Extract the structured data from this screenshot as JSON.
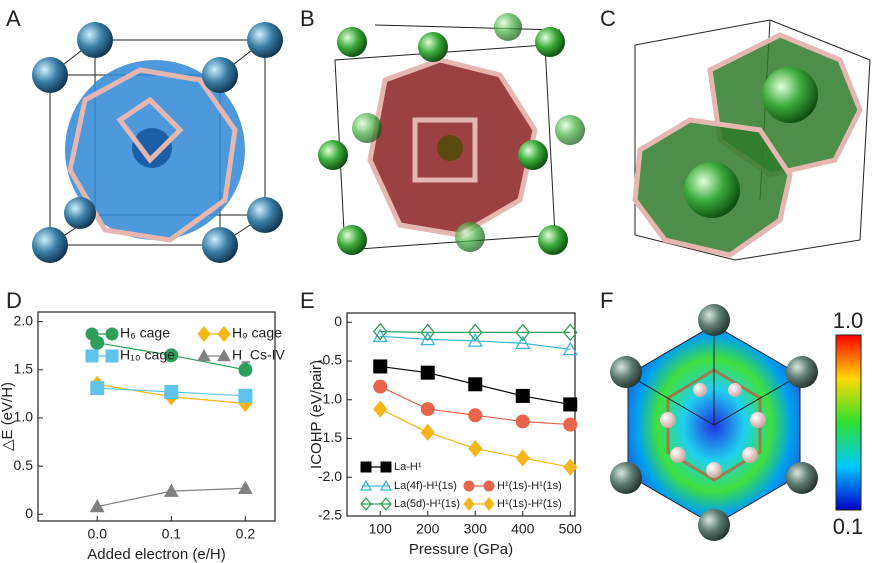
{
  "panel_labels": [
    "A",
    "B",
    "C",
    "D",
    "E",
    "F"
  ],
  "colorbar": {
    "max_label": "1.0",
    "min_label": "0.1"
  },
  "chart_data": [
    {
      "type": "line",
      "x_label": "Added electron (e/H)",
      "y_label": "△E (eV/H)",
      "x": [
        0,
        0.1,
        0.2
      ],
      "xlim": [
        -0.08,
        0.24
      ],
      "ylim": [
        -0.07,
        2.1
      ],
      "xticks": [
        {
          "value": 0,
          "label": "0.0"
        },
        0.1,
        0.2
      ],
      "yticks": [
        0,
        0.5,
        {
          "value": 1,
          "label": "1.0"
        },
        1.5,
        {
          "value": 2,
          "label": "2.0"
        }
      ],
      "legend": "top",
      "series": [
        {
          "name": "H₆ cage",
          "color": "#2e9e5b",
          "marker": "circle",
          "filled": true,
          "values": [
            1.78,
            1.65,
            1.5
          ]
        },
        {
          "name": "H₉ cage",
          "color": "#f6b61a",
          "marker": "diamond",
          "filled": true,
          "values": [
            1.35,
            1.22,
            1.15
          ]
        },
        {
          "name": "H₁₀ cage",
          "color": "#5ec4ec",
          "marker": "square",
          "filled": true,
          "values": [
            1.31,
            1.27,
            1.23
          ]
        },
        {
          "name": "H_Cs-IV",
          "color": "#808080",
          "marker": "triangle",
          "filled": true,
          "values": [
            0.08,
            0.24,
            0.27
          ]
        }
      ]
    },
    {
      "type": "line",
      "x_label": "Pressure (GPa)",
      "y_label": "ICOHP (eV/pair)",
      "x": [
        100,
        200,
        300,
        400,
        500
      ],
      "xlim": [
        30,
        510
      ],
      "ylim": [
        -2.5,
        0.12
      ],
      "xticks": [
        100,
        200,
        300,
        400,
        500
      ],
      "yticks": [
        0,
        -0.5,
        {
          "value": -1,
          "label": "-1.0"
        },
        -1.5,
        {
          "value": -2,
          "label": "-2.0"
        },
        -2.5
      ],
      "legend": "bottom",
      "series": [
        {
          "name": "La-H¹",
          "color": "#000000",
          "marker": "square",
          "filled": true,
          "values": [
            -0.57,
            -0.65,
            -0.8,
            -0.95,
            -1.06
          ]
        },
        {
          "name": "La(4f)-H¹(1s)",
          "color": "#3ab6d8",
          "marker": "triangle",
          "filled": false,
          "values": [
            -0.18,
            -0.22,
            -0.24,
            -0.27,
            -0.35
          ]
        },
        {
          "name": "La(5d)-H¹(1s)",
          "color": "#2e9e5b",
          "marker": "diamond",
          "filled": false,
          "values": [
            -0.12,
            -0.13,
            -0.13,
            -0.13,
            -0.13
          ]
        },
        {
          "name": "H¹(1s)-H¹(1s)",
          "color": "#e8644a",
          "marker": "circle",
          "filled": true,
          "values": [
            -0.83,
            -1.12,
            -1.2,
            -1.28,
            -1.32
          ]
        },
        {
          "name": "H¹(1s)-H²(1s)",
          "color": "#f6b61a",
          "marker": "diamond",
          "filled": true,
          "values": [
            -1.12,
            -1.42,
            -1.63,
            -1.75,
            -1.87
          ]
        }
      ]
    }
  ]
}
